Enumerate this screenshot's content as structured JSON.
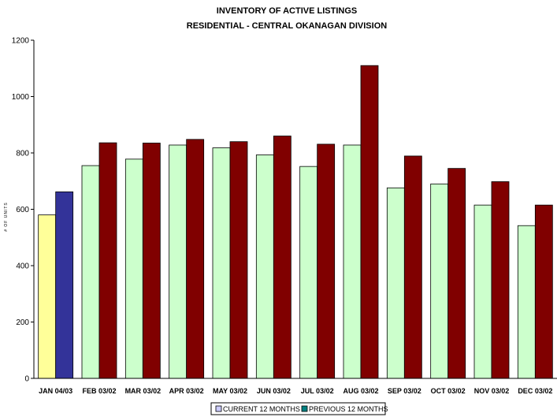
{
  "chart_data": {
    "type": "bar",
    "title": "INVENTORY OF ACTIVE LISTINGS",
    "subtitle": "RESIDENTIAL - CENTRAL OKANAGAN DIVISION",
    "ylabel": "# OF UNITS",
    "xlabel": "",
    "ylim": [
      0,
      1200
    ],
    "yticks": [
      0,
      200,
      400,
      600,
      800,
      1000,
      1200
    ],
    "grid": false,
    "legend_position": "bottom-center",
    "categories": [
      "JAN 04/03",
      "FEB 03/02",
      "MAR 03/02",
      "APR 03/02",
      "MAY 03/02",
      "JUN 03/02",
      "JUL 03/02",
      "AUG 03/02",
      "SEP 03/02",
      "OCT 03/02",
      "NOV 03/02",
      "DEC 03/02"
    ],
    "series": [
      {
        "name": "CURRENT 12 MONTHS",
        "values": [
          580,
          755,
          778,
          828,
          818,
          793,
          752,
          828,
          676,
          690,
          615,
          542
        ],
        "color": "#CCFFCC",
        "highlight_color": "#FFFF99",
        "legend_color": "#CCCCFF"
      },
      {
        "name": "PREVIOUS 12 MONTHS",
        "values": [
          662,
          836,
          835,
          848,
          840,
          860,
          831,
          1110,
          789,
          745,
          698,
          615
        ],
        "color": "#800000",
        "highlight_color": "#333399",
        "legend_color": "#008080"
      }
    ]
  }
}
